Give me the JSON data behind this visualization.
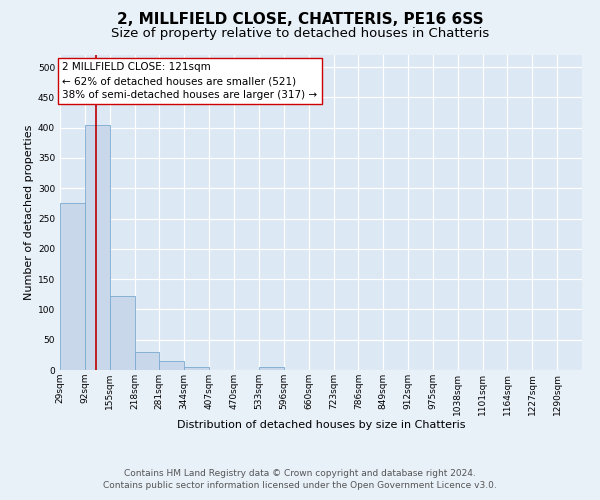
{
  "title": "2, MILLFIELD CLOSE, CHATTERIS, PE16 6SS",
  "subtitle": "Size of property relative to detached houses in Chatteris",
  "xlabel": "Distribution of detached houses by size in Chatteris",
  "ylabel": "Number of detached properties",
  "bin_labels": [
    "29sqm",
    "92sqm",
    "155sqm",
    "218sqm",
    "281sqm",
    "344sqm",
    "407sqm",
    "470sqm",
    "533sqm",
    "596sqm",
    "660sqm",
    "723sqm",
    "786sqm",
    "849sqm",
    "912sqm",
    "975sqm",
    "1038sqm",
    "1101sqm",
    "1164sqm",
    "1227sqm",
    "1290sqm"
  ],
  "bin_edges": [
    29,
    92,
    155,
    218,
    281,
    344,
    407,
    470,
    533,
    596,
    660,
    723,
    786,
    849,
    912,
    975,
    1038,
    1101,
    1164,
    1227,
    1290
  ],
  "bar_heights": [
    275,
    405,
    122,
    29,
    15,
    5,
    0,
    0,
    5,
    0,
    0,
    0,
    0,
    0,
    0,
    0,
    0,
    0,
    0,
    0
  ],
  "bar_color": "#c8d8ea",
  "bar_edge_color": "#7aaad0",
  "property_line_x": 121,
  "vline_color": "#bb0000",
  "annotation_line1": "2 MILLFIELD CLOSE: 121sqm",
  "annotation_line2": "← 62% of detached houses are smaller (521)",
  "annotation_line3": "38% of semi-detached houses are larger (317) →",
  "annotation_box_color": "#ffffff",
  "annotation_box_edge_color": "#cc0000",
  "ylim": [
    0,
    520
  ],
  "yticks": [
    0,
    50,
    100,
    150,
    200,
    250,
    300,
    350,
    400,
    450,
    500
  ],
  "footer_line1": "Contains HM Land Registry data © Crown copyright and database right 2024.",
  "footer_line2": "Contains public sector information licensed under the Open Government Licence v3.0.",
  "background_color": "#e8f0f8",
  "plot_bg_color": "#dce8f4",
  "grid_color": "#ffffff",
  "title_fontsize": 11,
  "subtitle_fontsize": 9.5,
  "axis_label_fontsize": 8,
  "tick_fontsize": 6.5,
  "annotation_fontsize": 7.5,
  "footer_fontsize": 6.5
}
